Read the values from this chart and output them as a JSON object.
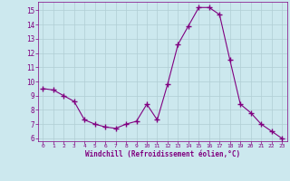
{
  "x": [
    0,
    1,
    2,
    3,
    4,
    5,
    6,
    7,
    8,
    9,
    10,
    11,
    12,
    13,
    14,
    15,
    16,
    17,
    18,
    19,
    20,
    21,
    22,
    23
  ],
  "y": [
    9.5,
    9.4,
    9.0,
    8.6,
    7.3,
    7.0,
    6.8,
    6.7,
    7.0,
    7.2,
    8.4,
    7.3,
    9.8,
    12.6,
    13.9,
    15.2,
    15.2,
    14.7,
    11.5,
    8.4,
    7.8,
    7.0,
    6.5,
    6.0
  ],
  "line_color": "#800080",
  "marker": "+",
  "marker_size": 4,
  "bg_color": "#cce8ee",
  "grid_color": "#b0cdd4",
  "xlabel": "Windchill (Refroidissement éolien,°C)",
  "xlabel_color": "#800080",
  "tick_color": "#800080",
  "ylim": [
    5.8,
    15.6
  ],
  "xlim": [
    -0.5,
    23.5
  ],
  "yticks": [
    6,
    7,
    8,
    9,
    10,
    11,
    12,
    13,
    14,
    15
  ],
  "xticks": [
    0,
    1,
    2,
    3,
    4,
    5,
    6,
    7,
    8,
    9,
    10,
    11,
    12,
    13,
    14,
    15,
    16,
    17,
    18,
    19,
    20,
    21,
    22,
    23
  ]
}
